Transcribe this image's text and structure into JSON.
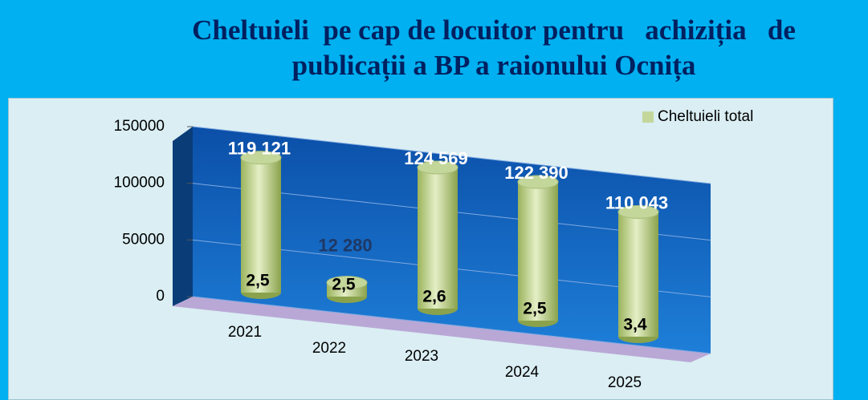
{
  "chart_data": {
    "type": "bar",
    "title": "Cheltuieli  pe cap de locuitor pentru   achiziția   de publicații a BP a raionului Ocnița",
    "categories": [
      "2021",
      "2022",
      "2023",
      "2024",
      "2025"
    ],
    "series": [
      {
        "name": "Cheltuieli total",
        "color": "#c4d79b",
        "values": [
          119121,
          12280,
          124569,
          122390,
          110043
        ],
        "value_labels": [
          "119 121",
          "12 280",
          "124 569",
          "122 390",
          "110 043"
        ]
      }
    ],
    "annotations": [
      "2,5",
      "2,5",
      "2,6",
      "2,5",
      "3,4"
    ],
    "ylim": [
      0,
      150000
    ],
    "yticks": [
      0,
      50000,
      100000,
      150000
    ],
    "grid": true,
    "legend": "top-right"
  }
}
